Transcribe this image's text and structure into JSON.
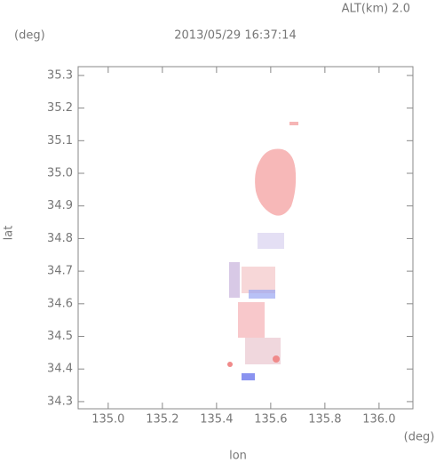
{
  "chart_data": {
    "type": "map",
    "title": "2013/05/29 16:37:14",
    "subtitle": "ALT(km) 2.0",
    "x_label": "lon",
    "y_label": "lat",
    "x_unit": "(deg)",
    "y_unit": "(deg)",
    "xlim": [
      134.889,
      136.125
    ],
    "ylim": [
      34.278,
      35.327
    ],
    "xticks": [
      {
        "value": 135,
        "label": "135.0"
      },
      135.2,
      135.4,
      135.6,
      135.8,
      {
        "value": 136,
        "label": "136.0"
      }
    ],
    "yticks": [
      34.3,
      34.4,
      34.5,
      34.6,
      34.7,
      34.8,
      34.9,
      {
        "value": 35,
        "label": "35.0"
      },
      35.1,
      35.2,
      35.3
    ]
  }
}
